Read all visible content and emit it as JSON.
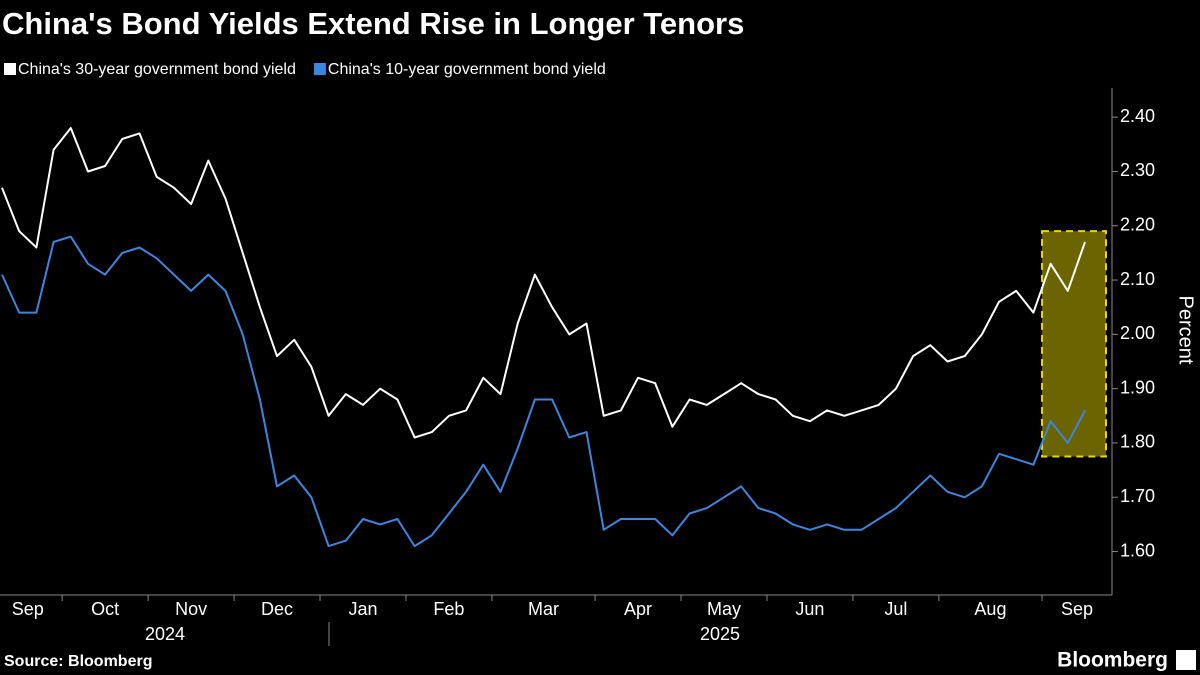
{
  "chart_data": {
    "type": "line",
    "title": "China's Bond Yields Extend Rise in Longer Tenors",
    "y_label": "Percent",
    "source": "Source: Bloomberg",
    "brand": "Bloomberg",
    "years": [
      "2024",
      "2025"
    ],
    "categories": [
      "Sep",
      null,
      null,
      null,
      "Oct",
      null,
      null,
      null,
      null,
      "Nov",
      null,
      null,
      null,
      null,
      "Dec",
      null,
      null,
      null,
      null,
      "Jan",
      null,
      null,
      null,
      null,
      "Feb",
      null,
      null,
      null,
      null,
      "Mar",
      null,
      null,
      null,
      null,
      null,
      "Apr",
      null,
      null,
      null,
      null,
      "May",
      null,
      null,
      null,
      null,
      "Jun",
      null,
      null,
      null,
      null,
      "Jul",
      null,
      null,
      null,
      null,
      "Aug",
      null,
      null,
      null,
      null,
      null,
      "Sep",
      null,
      null
    ],
    "series": [
      {
        "name": "China's 30-year government bond yield",
        "color": "#ffffff",
        "values": [
          2.27,
          2.19,
          2.16,
          2.34,
          2.38,
          2.3,
          2.31,
          2.36,
          2.37,
          2.29,
          2.27,
          2.24,
          2.32,
          2.25,
          2.15,
          2.05,
          1.96,
          1.99,
          1.94,
          1.85,
          1.89,
          1.87,
          1.9,
          1.88,
          1.81,
          1.82,
          1.85,
          1.86,
          1.92,
          1.89,
          2.02,
          2.11,
          2.05,
          2.0,
          2.02,
          1.85,
          1.86,
          1.92,
          1.91,
          1.83,
          1.88,
          1.87,
          1.89,
          1.91,
          1.89,
          1.88,
          1.85,
          1.84,
          1.86,
          1.85,
          1.86,
          1.87,
          1.9,
          1.96,
          1.98,
          1.95,
          1.96,
          2.0,
          2.06,
          2.08,
          2.04,
          2.13,
          2.08,
          2.17
        ]
      },
      {
        "name": "China's 10-year government  bond yield",
        "color": "#3a86e0",
        "values": [
          2.11,
          2.04,
          2.04,
          2.17,
          2.18,
          2.13,
          2.11,
          2.15,
          2.16,
          2.14,
          2.11,
          2.08,
          2.11,
          2.08,
          2.0,
          1.88,
          1.72,
          1.74,
          1.7,
          1.61,
          1.62,
          1.66,
          1.65,
          1.66,
          1.61,
          1.63,
          1.67,
          1.71,
          1.76,
          1.71,
          1.79,
          1.88,
          1.88,
          1.81,
          1.82,
          1.64,
          1.66,
          1.66,
          1.66,
          1.63,
          1.67,
          1.68,
          1.7,
          1.72,
          1.68,
          1.67,
          1.65,
          1.64,
          1.65,
          1.64,
          1.64,
          1.66,
          1.68,
          1.71,
          1.74,
          1.71,
          1.7,
          1.72,
          1.78,
          1.77,
          1.76,
          1.84,
          1.8,
          1.86
        ]
      }
    ],
    "highlight_ylim": [
      1.775,
      2.19
    ],
    "ylim": [
      1.52,
      2.45
    ],
    "yticks": [
      {
        "value": 1.6,
        "label": "1.60"
      },
      {
        "value": 1.7,
        "label": "1.70"
      },
      {
        "value": 1.8,
        "label": "1.80"
      },
      {
        "value": 1.9,
        "label": "1.90"
      },
      {
        "value": 2,
        "label": "2.00"
      },
      {
        "value": 2.1,
        "label": "2.10"
      },
      {
        "value": 2.2,
        "label": "2.20"
      },
      {
        "value": 2.3,
        "label": "2.30"
      },
      {
        "value": 2.4,
        "label": "2.40"
      }
    ],
    "grid": false
  }
}
